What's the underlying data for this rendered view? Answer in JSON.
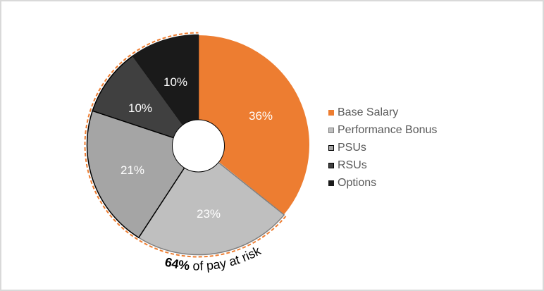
{
  "chart_data": {
    "type": "pie",
    "subtype": "donut",
    "title": "",
    "categories": [
      "Base Salary",
      "Performance Bonus",
      "PSUs",
      "RSUs",
      "Options"
    ],
    "values": [
      36,
      23,
      21,
      10,
      10
    ],
    "labels": [
      "36%",
      "23%",
      "21%",
      "10%",
      "10%"
    ],
    "colors": [
      "#ed7d31",
      "#bfbfbf",
      "#a5a5a5",
      "#404040",
      "#1a1a1a"
    ],
    "legend_position": "right",
    "annotation": {
      "bold": "64%",
      "text": " of pay at risk",
      "covers": [
        "Performance Bonus",
        "PSUs",
        "RSUs",
        "Options"
      ],
      "value": 64,
      "highlight_color": "#ed7d31"
    }
  },
  "legend": {
    "items": [
      {
        "label": "Base Salary",
        "color": "#ed7d31",
        "border": "#ed7d31"
      },
      {
        "label": "Performance Bonus",
        "color": "#bfbfbf",
        "border": "#7f7f7f"
      },
      {
        "label": "PSUs",
        "color": "#a5a5a5",
        "border": "#000000"
      },
      {
        "label": "RSUs",
        "color": "#404040",
        "border": "#000000"
      },
      {
        "label": "Options",
        "color": "#1a1a1a",
        "border": "#1a1a1a"
      }
    ]
  }
}
